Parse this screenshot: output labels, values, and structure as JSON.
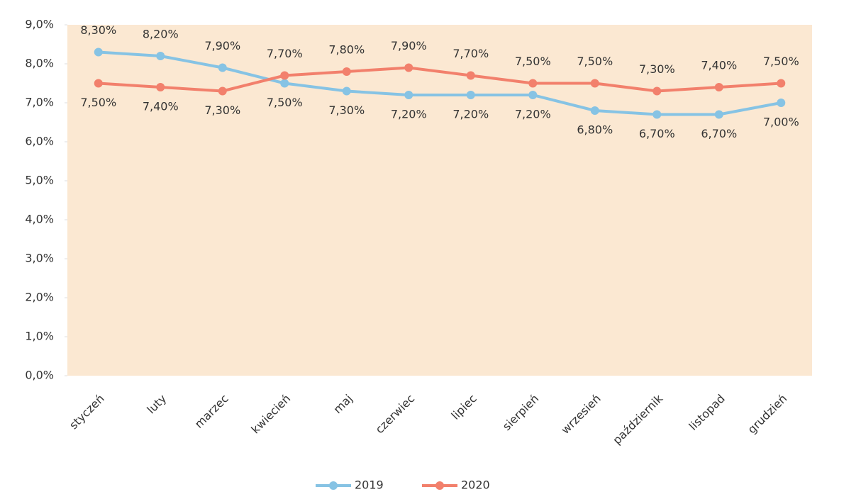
{
  "chart_data": {
    "type": "line",
    "categories": [
      "styczeń",
      "luty",
      "marzec",
      "kwiecień",
      "maj",
      "czerwiec",
      "lipiec",
      "sierpień",
      "wrzesień",
      "październik",
      "listopad",
      "grudzień"
    ],
    "series": [
      {
        "name": "2019",
        "color": "#86c3e4",
        "values": [
          8.3,
          8.2,
          7.9,
          7.5,
          7.3,
          7.2,
          7.2,
          7.2,
          6.8,
          6.7,
          6.7,
          7.0
        ],
        "value_labels": [
          "8,30%",
          "8,20%",
          "7,90%",
          "7,50%",
          "7,30%",
          "7,20%",
          "7,20%",
          "7,20%",
          "6,80%",
          "6,70%",
          "6,70%",
          "7,00%"
        ]
      },
      {
        "name": "2020",
        "color": "#f2806c",
        "values": [
          7.5,
          7.4,
          7.3,
          7.7,
          7.8,
          7.9,
          7.7,
          7.5,
          7.5,
          7.3,
          7.4,
          7.5
        ],
        "value_labels": [
          "7,50%",
          "7,40%",
          "7,30%",
          "7,70%",
          "7,80%",
          "7,90%",
          "7,70%",
          "7,50%",
          "7,50%",
          "7,30%",
          "7,40%",
          "7,50%"
        ]
      }
    ],
    "ylim": [
      0,
      9
    ],
    "yticks": [
      {
        "value": 0,
        "label": "0,0%"
      },
      {
        "value": 1,
        "label": "1,0%"
      },
      {
        "value": 2,
        "label": "2,0%"
      },
      {
        "value": 3,
        "label": "3,0%"
      },
      {
        "value": 4,
        "label": "4,0%"
      },
      {
        "value": 5,
        "label": "5,0%"
      },
      {
        "value": 6,
        "label": "6,0%"
      },
      {
        "value": 7,
        "label": "7,0%"
      },
      {
        "value": 8,
        "label": "8,0%"
      },
      {
        "value": 9,
        "label": "9,0%"
      }
    ],
    "legend": "bottom"
  }
}
